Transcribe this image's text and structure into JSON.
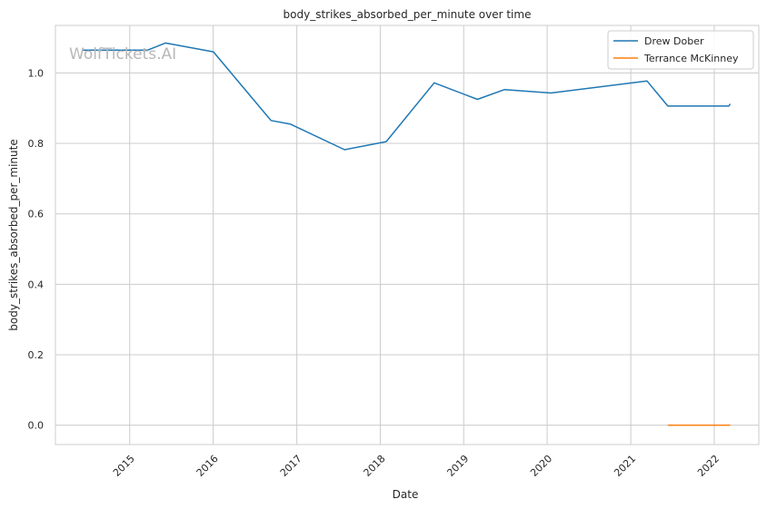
{
  "watermark": "WolfTickets.AI",
  "chart_data": {
    "type": "line",
    "title": "body_strikes_absorbed_per_minute over time",
    "xlabel": "Date",
    "ylabel": "body_strikes_absorbed_per_minute",
    "x_ticks": [
      "2015",
      "2016",
      "2017",
      "2018",
      "2019",
      "2020",
      "2021",
      "2022"
    ],
    "y_ticks": [
      "0.0",
      "0.2",
      "0.4",
      "0.6",
      "0.8",
      "1.0"
    ],
    "xlim": [
      "2014-02-10",
      "2022-07-15"
    ],
    "ylim": [
      -0.055,
      1.135
    ],
    "grid": true,
    "legend_position": "top-right",
    "series": [
      {
        "name": "Drew Dober",
        "color": "#1f77b4",
        "points": [
          [
            "2014-06-07",
            1.065
          ],
          [
            "2015-03-21",
            1.065
          ],
          [
            "2015-06-06",
            1.085
          ],
          [
            "2016-01-02",
            1.06
          ],
          [
            "2016-09-10",
            0.865
          ],
          [
            "2016-12-03",
            0.855
          ],
          [
            "2017-07-29",
            0.782
          ],
          [
            "2018-01-27",
            0.805
          ],
          [
            "2018-08-25",
            0.972
          ],
          [
            "2019-03-02",
            0.925
          ],
          [
            "2019-06-29",
            0.953
          ],
          [
            "2020-01-18",
            0.943
          ],
          [
            "2021-03-13",
            0.977
          ],
          [
            "2021-06-12",
            0.906
          ],
          [
            "2022-03-05",
            0.906
          ],
          [
            "2022-03-12",
            0.912
          ]
        ]
      },
      {
        "name": "Terrance McKinney",
        "color": "#ff7f0e",
        "points": [
          [
            "2021-06-12",
            0.0
          ],
          [
            "2022-03-12",
            0.0
          ]
        ]
      }
    ]
  }
}
